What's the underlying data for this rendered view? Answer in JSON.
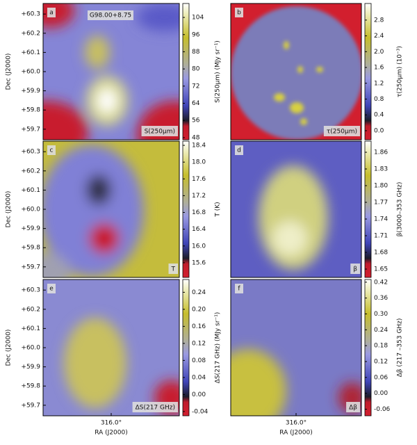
{
  "chart_data": [
    {
      "type": "heatmap",
      "panel": "a",
      "title": "G98.00+8.75",
      "label": "S(250μm)",
      "colorbar_label": "S(250μm) (MJy sr⁻¹)",
      "clim": [
        47,
        110.5
      ],
      "cticks": [
        48,
        56,
        64,
        72,
        80,
        88,
        96,
        104
      ],
      "ylabel": "Dec (J2000)",
      "ylim": [
        59.645,
        60.355
      ],
      "yticks": [
        {
          "value": 59.7,
          "label": "+59.7"
        },
        {
          "value": 59.8,
          "label": "+59.8"
        },
        {
          "value": 59.9,
          "label": "+59.9"
        },
        {
          "value": 60.0,
          "label": "+60.0"
        },
        {
          "value": 60.1,
          "label": "+60.1"
        },
        {
          "value": 60.2,
          "label": "+60.2"
        },
        {
          "value": 60.3,
          "label": "+60.3"
        }
      ]
    },
    {
      "type": "heatmap",
      "panel": "b",
      "label": "τ(250μm)",
      "colorbar_label": "τ(250μm) (10⁻³)",
      "clim": [
        -0.23,
        3.22
      ],
      "cticks": [
        {
          "value": 0,
          "label": "0.0"
        },
        0.4,
        0.8,
        1.2,
        1.6,
        {
          "value": 2,
          "label": "2.0"
        },
        2.4,
        2.8
      ]
    },
    {
      "type": "heatmap",
      "panel": "c",
      "label": "T",
      "colorbar_label": "T (K)",
      "clim": [
        15.25,
        18.5
      ],
      "cticks": [
        15.6,
        {
          "value": 16,
          "label": "16.0"
        },
        16.4,
        16.8,
        17.2,
        17.6,
        {
          "value": 18,
          "label": "18.0"
        },
        18.4
      ],
      "ylabel": "Dec (J2000)",
      "ylim": [
        59.645,
        60.355
      ],
      "yticks": [
        {
          "value": 59.7,
          "label": "+59.7"
        },
        {
          "value": 59.8,
          "label": "+59.8"
        },
        {
          "value": 59.9,
          "label": "+59.9"
        },
        {
          "value": 60.0,
          "label": "+60.0"
        },
        {
          "value": 60.1,
          "label": "+60.1"
        },
        {
          "value": 60.2,
          "label": "+60.2"
        },
        {
          "value": 60.3,
          "label": "+60.3"
        }
      ]
    },
    {
      "type": "heatmap",
      "panel": "d",
      "label": "β",
      "colorbar_label": "β(3000–353 GHz)",
      "clim": [
        1.635,
        1.88
      ],
      "cticks": [
        1.65,
        1.68,
        1.71,
        1.74,
        1.77,
        {
          "value": 1.8,
          "label": "1.80"
        },
        1.83,
        1.86
      ]
    },
    {
      "type": "heatmap",
      "panel": "e",
      "label": "ΔS(217 GHz)",
      "colorbar_label": "ΔS(217 GHz) (MJy sr⁻¹)",
      "clim": [
        -0.05,
        0.27
      ],
      "cticks": [
        -0.04,
        {
          "value": 0,
          "label": "0.00"
        },
        0.04,
        0.08,
        0.12,
        0.16,
        {
          "value": 0.2,
          "label": "0.20"
        },
        0.24
      ],
      "ylabel": "Dec (J2000)",
      "ylim": [
        59.645,
        60.355
      ],
      "yticks": [
        {
          "value": 59.7,
          "label": "+59.7"
        },
        {
          "value": 59.8,
          "label": "+59.8"
        },
        {
          "value": 59.9,
          "label": "+59.9"
        },
        {
          "value": 60.0,
          "label": "+60.0"
        },
        {
          "value": 60.1,
          "label": "+60.1"
        },
        {
          "value": 60.2,
          "label": "+60.2"
        },
        {
          "value": 60.3,
          "label": "+60.3"
        }
      ],
      "xlabel": "RA (J2000)",
      "xlim": [
        316.3,
        315.7
      ],
      "xticks": [
        {
          "value": 316.0,
          "label": "316.0°"
        }
      ]
    },
    {
      "type": "heatmap",
      "panel": "f",
      "label": "Δβ",
      "colorbar_label": "Δβ (217 –353 GHz)",
      "clim": [
        -0.085,
        0.43
      ],
      "cticks": [
        -0.06,
        {
          "value": 0,
          "label": "0.00"
        },
        0.06,
        0.12,
        0.18,
        0.24,
        {
          "value": 0.3,
          "label": "0.30"
        },
        0.36,
        0.42
      ],
      "xlabel": "RA (J2000)",
      "xlim": [
        316.3,
        315.7
      ],
      "xticks": [
        {
          "value": 316.0,
          "label": "316.0°"
        }
      ]
    }
  ]
}
